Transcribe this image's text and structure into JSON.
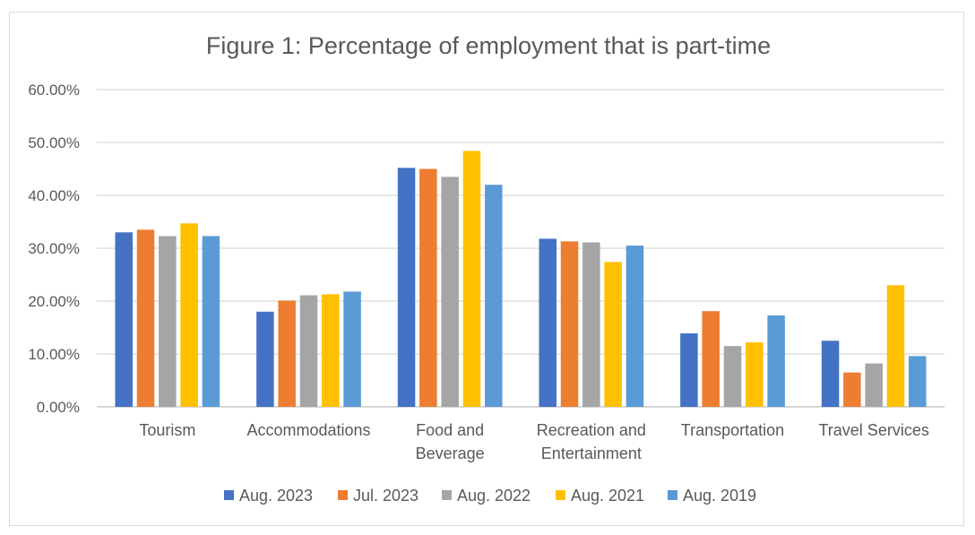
{
  "chart_data": {
    "type": "bar",
    "title": "Figure 1: Percentage of employment that is part-time",
    "xlabel": "",
    "ylabel": "",
    "categories": [
      [
        "Tourism"
      ],
      [
        "Accommodations"
      ],
      [
        "Food and",
        "Beverage"
      ],
      [
        "Recreation and",
        "Entertainment"
      ],
      [
        "Transportation"
      ],
      [
        "Travel Services"
      ]
    ],
    "y_ticks": [
      "0.00%",
      "10.00%",
      "20.00%",
      "30.00%",
      "40.00%",
      "50.00%",
      "60.00%"
    ],
    "ylim": [
      0,
      60
    ],
    "grid": true,
    "legend_position": "bottom",
    "series": [
      {
        "name": "Aug. 2023",
        "color": "#4472C4",
        "values": [
          33.0,
          18.0,
          45.2,
          31.8,
          13.9,
          12.5
        ]
      },
      {
        "name": "Jul. 2023",
        "color": "#ED7D31",
        "values": [
          33.5,
          20.1,
          45.0,
          31.3,
          18.1,
          6.5
        ]
      },
      {
        "name": "Aug. 2022",
        "color": "#A5A5A5",
        "values": [
          32.3,
          21.1,
          43.5,
          31.1,
          11.5,
          8.2
        ]
      },
      {
        "name": "Aug. 2021",
        "color": "#FFC000",
        "values": [
          34.7,
          21.3,
          48.4,
          27.4,
          12.2,
          23.0
        ]
      },
      {
        "name": "Aug. 2019",
        "color": "#5B9BD5",
        "values": [
          32.3,
          21.8,
          42.0,
          30.5,
          17.3,
          9.6
        ]
      }
    ]
  }
}
